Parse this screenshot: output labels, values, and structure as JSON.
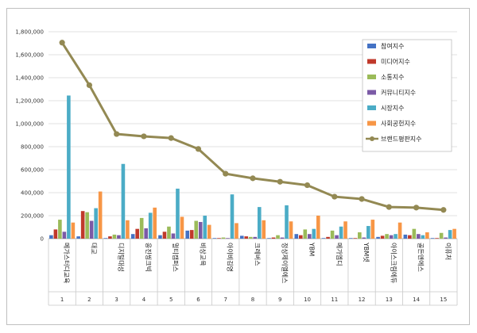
{
  "chart_data": {
    "type": "bar",
    "ylim": [
      0,
      1800000
    ],
    "yticks": [
      "0",
      "200,000",
      "400,000",
      "600,000",
      "800,000",
      "1,000,000",
      "1,200,000",
      "1,400,000",
      "1,600,000",
      "1,800,000"
    ],
    "grid": true,
    "legend_position": "top-right",
    "ranks": [
      "1",
      "2",
      "3",
      "4",
      "5",
      "6",
      "7",
      "8",
      "9",
      "10",
      "11",
      "12",
      "13",
      "14",
      "15"
    ],
    "categories": [
      "메가스터디교육",
      "대교",
      "디지털대성",
      "웅진씽크빅",
      "멀티캠퍼스",
      "비상교육",
      "아이비김영",
      "크레버스",
      "정상제이엘에스",
      "YBM",
      "메가엠디",
      "YBM넷",
      "아이스크림에듀",
      "골든앤에스",
      "이퓨처"
    ],
    "series": [
      {
        "name": "참여지수",
        "color": "#4472c4",
        "values": [
          30000,
          20000,
          5000,
          40000,
          30000,
          70000,
          5000,
          25000,
          5000,
          40000,
          5000,
          5000,
          15000,
          35000,
          5000
        ]
      },
      {
        "name": "미디어지수",
        "color": "#c0392b",
        "values": [
          80000,
          240000,
          20000,
          85000,
          60000,
          75000,
          5000,
          20000,
          10000,
          30000,
          15000,
          5000,
          25000,
          30000,
          5000
        ]
      },
      {
        "name": "소통지수",
        "color": "#9bbb59",
        "values": [
          165000,
          230000,
          35000,
          180000,
          105000,
          155000,
          10000,
          15000,
          30000,
          80000,
          70000,
          55000,
          40000,
          85000,
          50000
        ]
      },
      {
        "name": "커뮤니티지수",
        "color": "#7b5aa6",
        "values": [
          60000,
          155000,
          30000,
          90000,
          45000,
          145000,
          5000,
          15000,
          10000,
          40000,
          30000,
          10000,
          30000,
          40000,
          10000
        ]
      },
      {
        "name": "시장지수",
        "color": "#4bacc6",
        "values": [
          1245000,
          265000,
          650000,
          225000,
          435000,
          200000,
          385000,
          275000,
          290000,
          85000,
          105000,
          110000,
          40000,
          30000,
          75000
        ]
      },
      {
        "name": "사회공헌지수",
        "color": "#f79646",
        "values": [
          140000,
          410000,
          160000,
          270000,
          190000,
          120000,
          135000,
          160000,
          150000,
          200000,
          150000,
          165000,
          140000,
          55000,
          85000
        ]
      }
    ],
    "line": {
      "name": "브랜드평판지수",
      "color": "#938953",
      "values": [
        1705000,
        1335000,
        910000,
        890000,
        875000,
        780000,
        565000,
        525000,
        495000,
        465000,
        365000,
        345000,
        275000,
        270000,
        250000
      ]
    }
  }
}
